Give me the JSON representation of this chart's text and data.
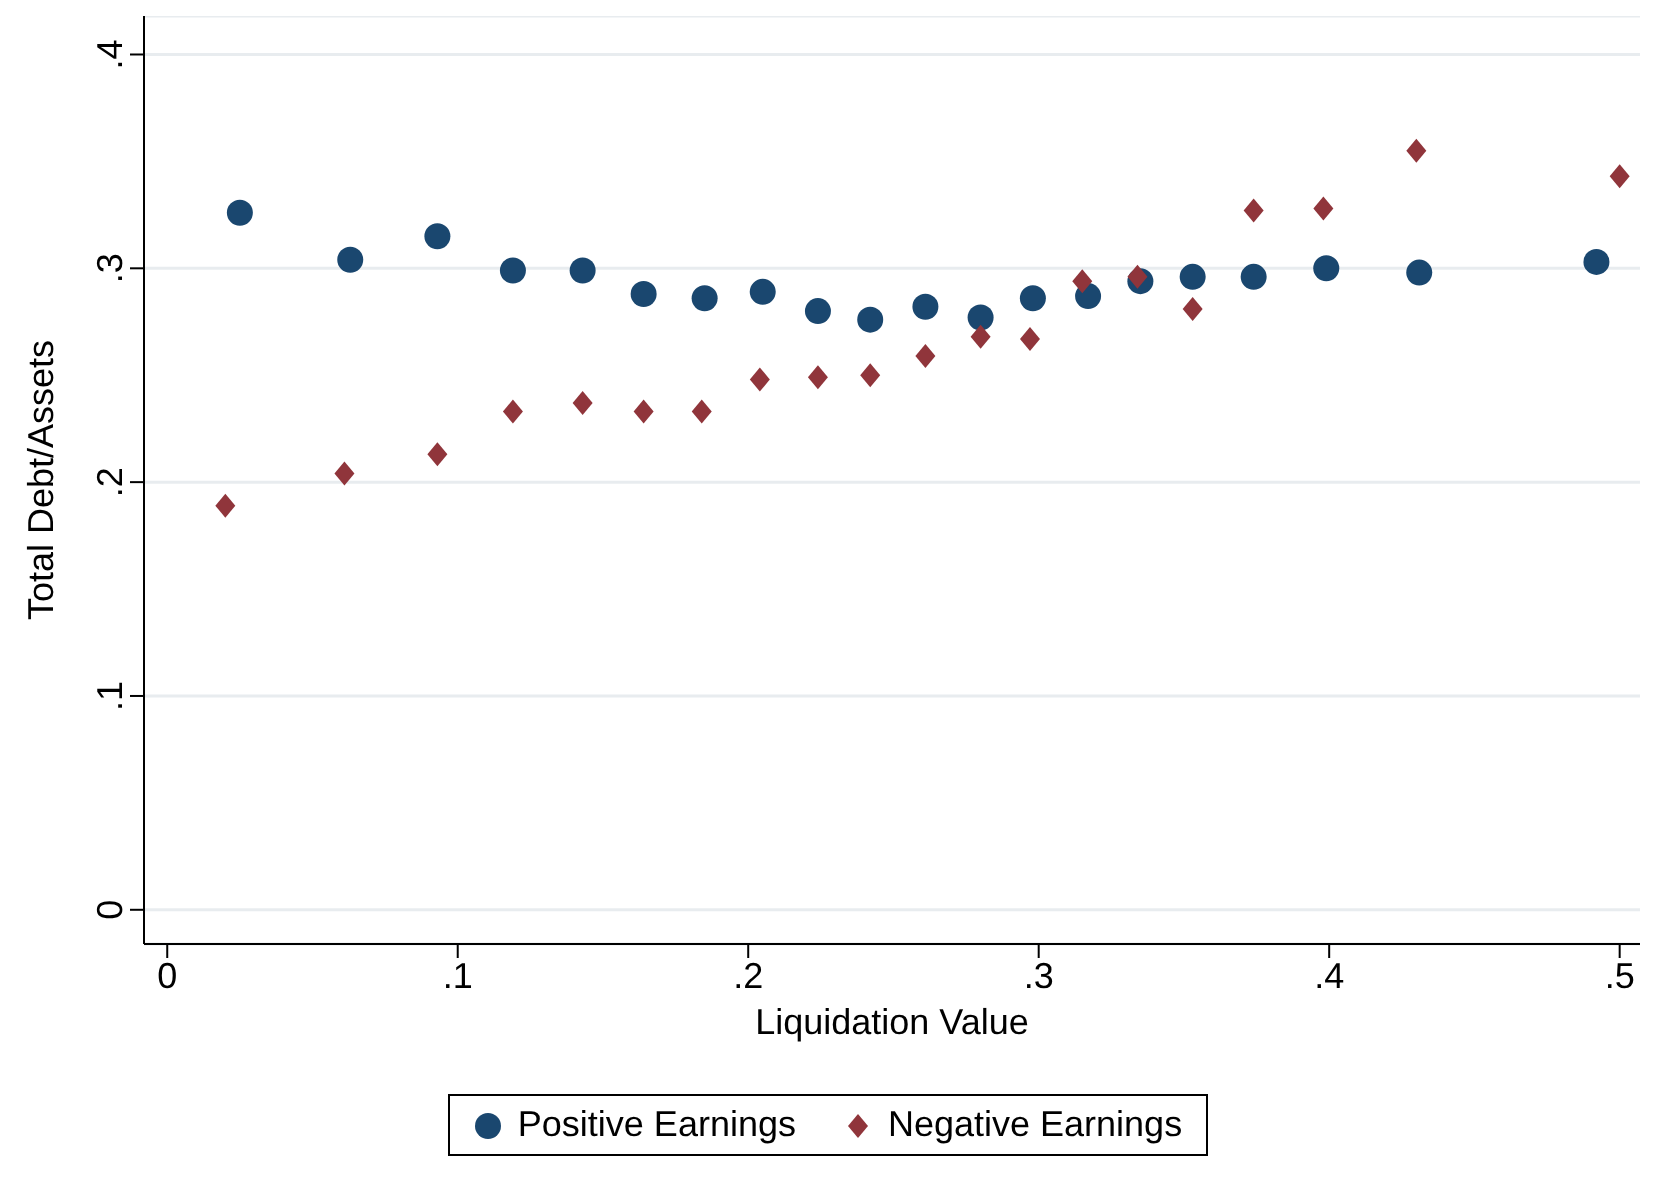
{
  "chart_data": {
    "type": "scatter",
    "xlabel": "Liquidation Value",
    "ylabel": "Total Debt/Assets",
    "xlim": [
      -0.008,
      0.507
    ],
    "ylim": [
      -0.016,
      0.418
    ],
    "xticks": [
      0,
      {
        "value": 0.1,
        "label": ".1"
      },
      {
        "value": 0.2,
        "label": ".2"
      },
      {
        "value": 0.3,
        "label": ".3"
      },
      {
        "value": 0.4,
        "label": ".4"
      },
      {
        "value": 0.5,
        "label": ".5"
      }
    ],
    "yticks": [
      0,
      {
        "value": 0.1,
        "label": ".1"
      },
      {
        "value": 0.2,
        "label": ".2"
      },
      {
        "value": 0.3,
        "label": ".3"
      },
      {
        "value": 0.4,
        "label": ".4"
      }
    ],
    "grid": "y",
    "legend": "bottom",
    "series": [
      {
        "name": "Positive Earnings",
        "color": "#1a476f",
        "marker": "circle",
        "x": [
          0.025,
          0.063,
          0.093,
          0.119,
          0.143,
          0.164,
          0.185,
          0.205,
          0.224,
          0.242,
          0.261,
          0.28,
          0.298,
          0.317,
          0.335,
          0.353,
          0.374,
          0.399,
          0.431,
          0.492
        ],
        "values": [
          0.326,
          0.304,
          0.315,
          0.299,
          0.299,
          0.288,
          0.286,
          0.289,
          0.28,
          0.276,
          0.282,
          0.277,
          0.286,
          0.287,
          0.294,
          0.296,
          0.296,
          0.3,
          0.298,
          0.303
        ]
      },
      {
        "name": "Negative Earnings",
        "color": "#90353b",
        "marker": "diamond",
        "x": [
          0.02,
          0.061,
          0.093,
          0.119,
          0.143,
          0.164,
          0.184,
          0.204,
          0.224,
          0.242,
          0.261,
          0.28,
          0.297,
          0.315,
          0.334,
          0.353,
          0.374,
          0.398,
          0.43,
          0.5
        ],
        "values": [
          0.189,
          0.204,
          0.213,
          0.233,
          0.237,
          0.233,
          0.233,
          0.248,
          0.249,
          0.25,
          0.259,
          0.268,
          0.267,
          0.294,
          0.296,
          0.281,
          0.327,
          0.328,
          0.355,
          0.343
        ]
      }
    ]
  }
}
